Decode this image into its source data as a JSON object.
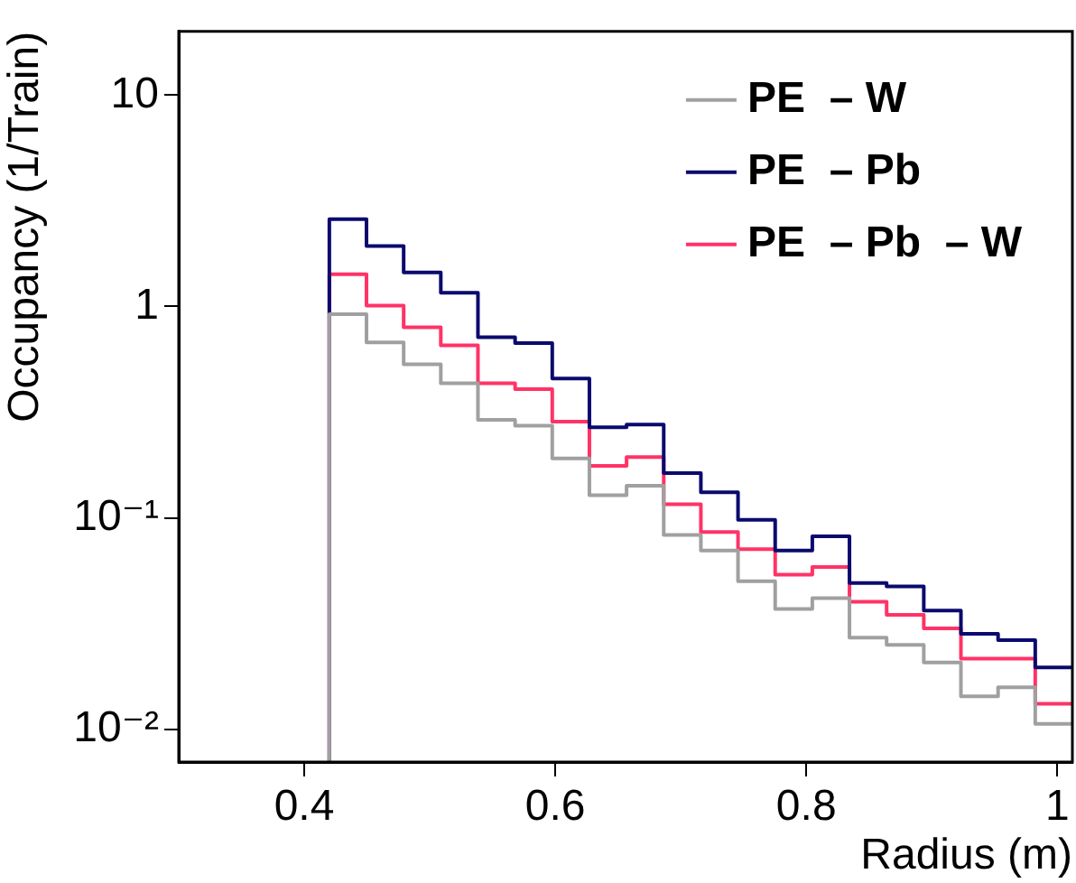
{
  "chart_data": {
    "type": "histogram",
    "xlabel": "Radius (m)",
    "ylabel": "Occupancy (1/Train)",
    "bins": [
      0.42,
      0.4496,
      0.4792,
      0.5088,
      0.5384,
      0.568,
      0.5976,
      0.6272,
      0.6568,
      0.6864,
      0.716,
      0.7456,
      0.7752,
      0.8048,
      0.8344,
      0.864,
      0.8936,
      0.9232,
      0.9528,
      0.9824,
      1.012
    ],
    "series": [
      {
        "name": "PE  – W",
        "color": "#a0a0a0",
        "values": [
          0.92,
          0.676,
          0.532,
          0.433,
          0.291,
          0.273,
          0.191,
          0.128,
          0.142,
          0.083,
          0.07,
          0.0502,
          0.0371,
          0.0417,
          0.0271,
          0.0251,
          0.0207,
          0.0143,
          0.0158,
          0.0106
        ]
      },
      {
        "name": "PE  – Pb",
        "color": "#0a0a6e",
        "values": [
          2.59,
          1.93,
          1.45,
          1.16,
          0.716,
          0.671,
          0.456,
          0.268,
          0.276,
          0.163,
          0.132,
          0.098,
          0.07,
          0.0819,
          0.0492,
          0.0474,
          0.0364,
          0.0283,
          0.0264,
          0.0196
        ]
      },
      {
        "name": "PE  – Pb  – W",
        "color": "#ff3366",
        "values": [
          1.42,
          1.01,
          0.798,
          0.654,
          0.433,
          0.406,
          0.285,
          0.176,
          0.194,
          0.116,
          0.0857,
          0.0711,
          0.0539,
          0.0586,
          0.0401,
          0.0348,
          0.03,
          0.0216,
          0.0216,
          0.0132
        ]
      }
    ],
    "xlim": [
      0.3,
      1.012
    ],
    "xticks": [
      0.4,
      0.6,
      0.8,
      1
    ],
    "ylim": [
      0.007,
      20
    ],
    "yticks": [
      {
        "value": 0.01,
        "label": "10⁻²"
      },
      {
        "value": 0.1,
        "label": "10⁻¹"
      },
      1,
      10
    ],
    "log": "y",
    "grid": false,
    "legend": "top right"
  }
}
